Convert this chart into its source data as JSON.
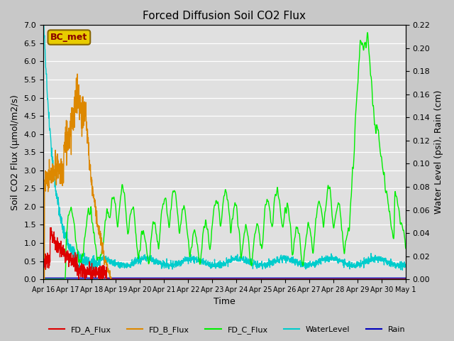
{
  "title": "Forced Diffusion Soil CO2 Flux",
  "ylabel_left": "Soil CO2 Flux (μmol/m2/s)",
  "ylabel_right": "Water Level (psi), Rain (cm)",
  "xlabel": "Time",
  "ylim_left": [
    0.0,
    7.0
  ],
  "ylim_right": [
    0.0,
    0.22
  ],
  "fig_bg_color": "#c8c8c8",
  "plot_bg_color": "#e0e0e0",
  "grid_color": "#ffffff",
  "bc_met_label": "BC_met",
  "bc_met_facecolor": "#e8cc00",
  "bc_met_edgecolor": "#886600",
  "bc_met_text_color": "#880000",
  "legend_entries": [
    "FD_A_Flux",
    "FD_B_Flux",
    "FD_C_Flux",
    "WaterLevel",
    "Rain"
  ],
  "legend_colors": [
    "#dd0000",
    "#dd8800",
    "#00ee00",
    "#00cccc",
    "#0000bb"
  ],
  "x_tick_labels": [
    "Apr 16",
    "Apr 17",
    "Apr 18",
    "Apr 19",
    "Apr 20",
    "Apr 21",
    "Apr 22",
    "Apr 23",
    "Apr 24",
    "Apr 25",
    "Apr 26",
    "Apr 27",
    "Apr 28",
    "Apr 29",
    "Apr 30",
    "May 1"
  ],
  "yticks_left": [
    0.0,
    0.5,
    1.0,
    1.5,
    2.0,
    2.5,
    3.0,
    3.5,
    4.0,
    4.5,
    5.0,
    5.5,
    6.0,
    6.5,
    7.0
  ],
  "yticks_right": [
    0.0,
    0.02,
    0.04,
    0.06,
    0.08,
    0.1,
    0.12,
    0.14,
    0.16,
    0.18,
    0.2,
    0.22
  ]
}
